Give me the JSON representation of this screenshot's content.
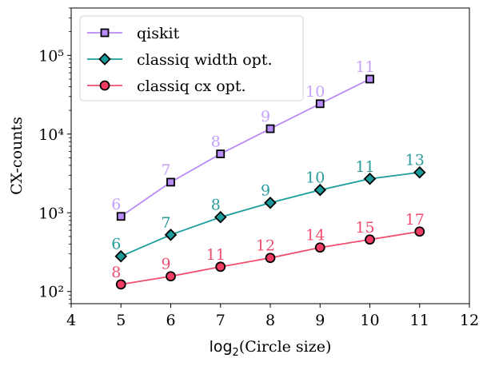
{
  "chart_data": {
    "type": "line",
    "title": "",
    "xlabel": {
      "base": "log",
      "sub": "2",
      "rest": "(Circle size)"
    },
    "ylabel": "CX-counts",
    "xlim": [
      4,
      12
    ],
    "ylim": [
      70,
      400000
    ],
    "yscale": "log",
    "grid": false,
    "legend_placement": "top-left",
    "xticks": [
      4,
      5,
      6,
      7,
      8,
      9,
      10,
      11,
      12
    ],
    "yticks": [
      {
        "value": 100,
        "label": "10²"
      },
      {
        "value": 1000,
        "label": "10³"
      },
      {
        "value": 10000,
        "label": "10⁴"
      },
      {
        "value": 100000,
        "label": "10⁵"
      }
    ],
    "series": [
      {
        "name": "qiskit",
        "marker": "square",
        "color": "#b88cf8",
        "fill": "#b88cf8",
        "label_color": "#c4a2fa",
        "x": [
          5,
          6,
          7,
          8,
          9,
          10
        ],
        "y": [
          900,
          2450,
          5600,
          11700,
          24300,
          50000
        ],
        "labels": [
          "6",
          "7",
          "8",
          "9",
          "10",
          "11"
        ]
      },
      {
        "name": "classiq width opt.",
        "marker": "diamond",
        "color": "#1a9c9c",
        "fill": "#1a9c9c",
        "label_color": "#2a9c9c",
        "x": [
          5,
          6,
          7,
          8,
          9,
          10,
          11
        ],
        "y": [
          280,
          525,
          880,
          1340,
          1950,
          2700,
          3260
        ],
        "labels": [
          "6",
          "7",
          "8",
          "9",
          "10",
          "11",
          "13"
        ]
      },
      {
        "name": "classiq cx opt.",
        "marker": "circle",
        "color": "#f04e6e",
        "fill": "#f23c64",
        "label_color": "#f04e6e",
        "x": [
          5,
          6,
          7,
          8,
          9,
          10,
          11
        ],
        "y": [
          123,
          156,
          206,
          267,
          362,
          457,
          577
        ],
        "labels": [
          "8",
          "9",
          "11",
          "12",
          "14",
          "15",
          "17"
        ]
      }
    ]
  }
}
